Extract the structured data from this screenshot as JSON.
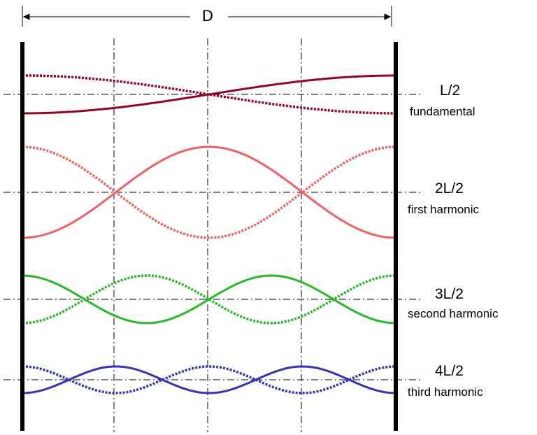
{
  "dimension_label": "D",
  "modes": [
    {
      "label": "L/2",
      "name": "fundamental",
      "n": 1,
      "color": "#990022"
    },
    {
      "label": "2L/2",
      "name": "first harmonic",
      "n": 2,
      "color": "#f06060"
    },
    {
      "label": "3L/2",
      "name": "second harmonic",
      "n": 3,
      "color": "#22bb22"
    },
    {
      "label": "4L/2",
      "name": "third harmonic",
      "n": 4,
      "color": "#3333bb"
    }
  ]
}
